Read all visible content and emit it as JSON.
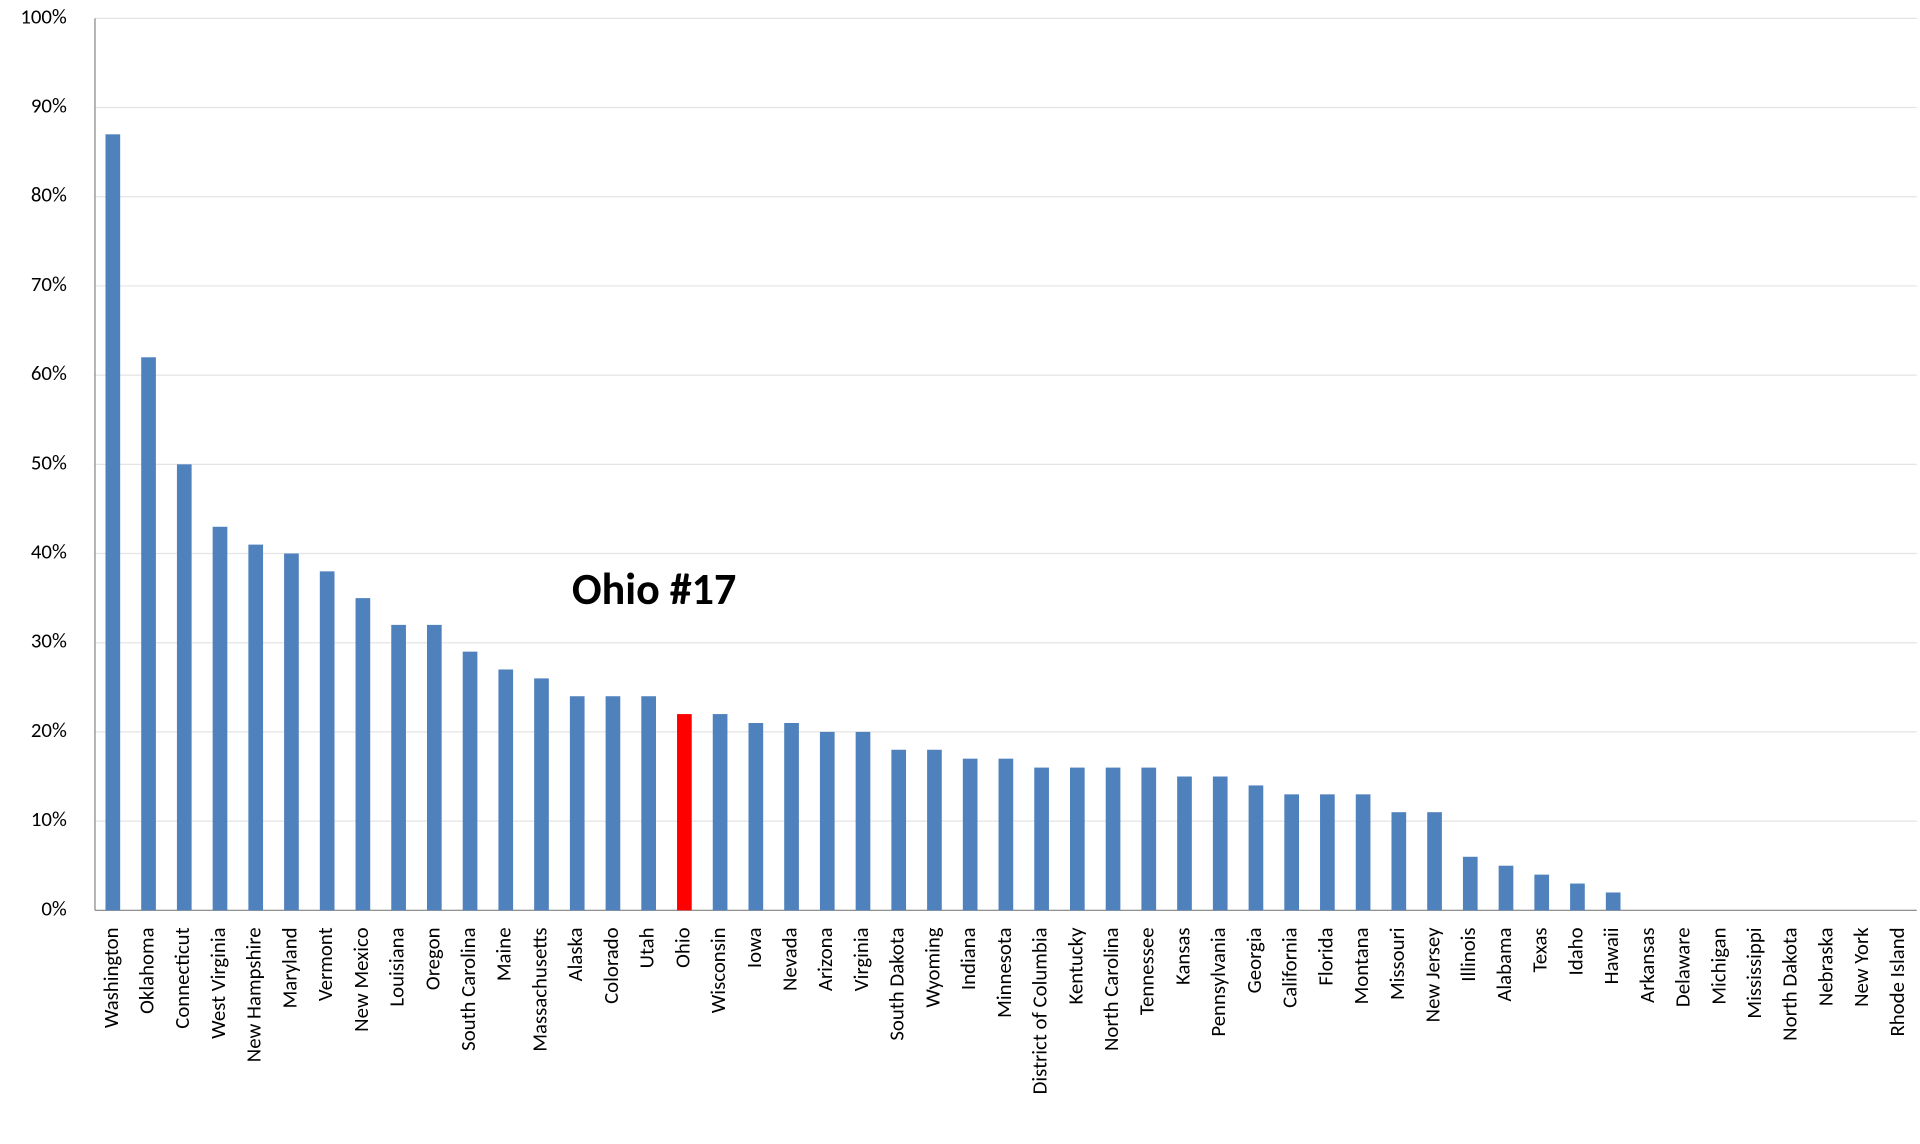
{
  "chart_data": {
    "type": "bar",
    "annotation": "Ohio #17",
    "categories": [
      "Washington",
      "Oklahoma",
      "Connecticut",
      "West Virginia",
      "New Hampshire",
      "Maryland",
      "Vermont",
      "New Mexico",
      "Louisiana",
      "Oregon",
      "South Carolina",
      "Maine",
      "Massachusetts",
      "Alaska",
      "Colorado",
      "Utah",
      "Ohio",
      "Wisconsin",
      "Iowa",
      "Nevada",
      "Arizona",
      "Virginia",
      "South Dakota",
      "Wyoming",
      "Indiana",
      "Minnesota",
      "District of Columbia",
      "Kentucky",
      "North Carolina",
      "Tennessee",
      "Kansas",
      "Pennsylvania",
      "Georgia",
      "California",
      "Florida",
      "Montana",
      "Missouri",
      "New Jersey",
      "Illinois",
      "Alabama",
      "Texas",
      "Idaho",
      "Hawaii",
      "Arkansas",
      "Delaware",
      "Michigan",
      "Mississippi",
      "North Dakota",
      "Nebraska",
      "New York",
      "Rhode Island"
    ],
    "values": [
      87,
      62,
      50,
      43,
      41,
      40,
      38,
      35,
      32,
      32,
      29,
      27,
      26,
      24,
      24,
      24,
      22,
      22,
      21,
      21,
      20,
      20,
      18,
      18,
      17,
      17,
      16,
      16,
      16,
      16,
      15,
      15,
      14,
      13,
      13,
      13,
      11,
      11,
      6,
      5,
      4,
      3,
      2,
      0,
      0,
      0,
      0,
      0,
      0,
      0,
      0
    ],
    "colors": [
      "#4f81bd",
      "#4f81bd",
      "#4f81bd",
      "#4f81bd",
      "#4f81bd",
      "#4f81bd",
      "#4f81bd",
      "#4f81bd",
      "#4f81bd",
      "#4f81bd",
      "#4f81bd",
      "#4f81bd",
      "#4f81bd",
      "#4f81bd",
      "#4f81bd",
      "#4f81bd",
      "#ff0000",
      "#4f81bd",
      "#4f81bd",
      "#4f81bd",
      "#4f81bd",
      "#4f81bd",
      "#4f81bd",
      "#4f81bd",
      "#4f81bd",
      "#4f81bd",
      "#4f81bd",
      "#4f81bd",
      "#4f81bd",
      "#4f81bd",
      "#4f81bd",
      "#4f81bd",
      "#4f81bd",
      "#4f81bd",
      "#4f81bd",
      "#4f81bd",
      "#4f81bd",
      "#4f81bd",
      "#4f81bd",
      "#4f81bd",
      "#4f81bd",
      "#4f81bd",
      "#4f81bd",
      "#4f81bd",
      "#4f81bd",
      "#4f81bd",
      "#4f81bd",
      "#4f81bd",
      "#4f81bd",
      "#4f81bd",
      "#4f81bd"
    ],
    "ylim": [
      0,
      100
    ],
    "yticks": [
      {
        "value": 0,
        "label": "0%"
      },
      {
        "value": 10,
        "label": "10%"
      },
      {
        "value": 20,
        "label": "20%"
      },
      {
        "value": 30,
        "label": "30%"
      },
      {
        "value": 40,
        "label": "40%"
      },
      {
        "value": 50,
        "label": "50%"
      },
      {
        "value": 60,
        "label": "60%"
      },
      {
        "value": 70,
        "label": "70%"
      },
      {
        "value": 80,
        "label": "80%"
      },
      {
        "value": 90,
        "label": "90%"
      },
      {
        "value": 100,
        "label": "100%"
      }
    ],
    "grid": true
  }
}
